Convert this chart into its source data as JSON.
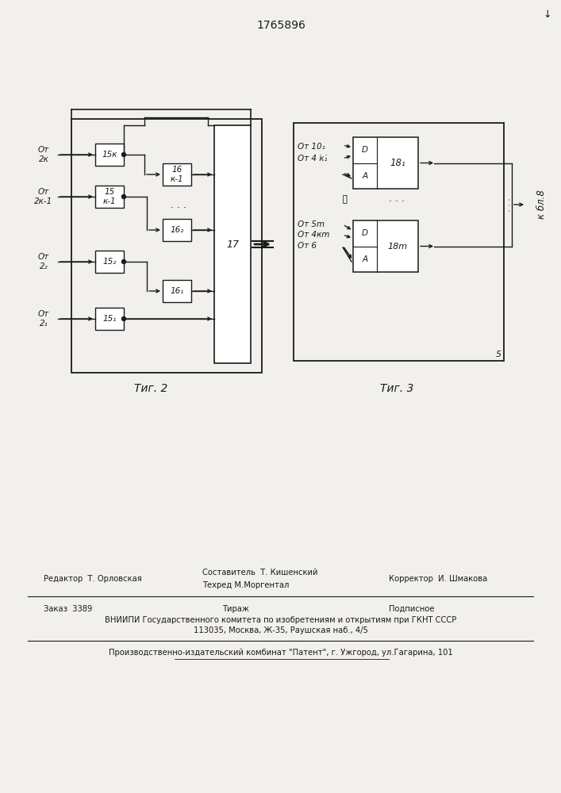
{
  "title": "1765896",
  "fig2_caption": "Τиг. 2",
  "fig3_caption": "Τиг. 3",
  "bg_color": "#f2f0ec",
  "line_color": "#1a1a1a",
  "box_color": "#ffffff",
  "inp2_labels": [
    "От\n2к",
    "От\n2к-1",
    "От\n2₂",
    "От\n2₁"
  ],
  "b15_labels": [
    "15к",
    "15\nк-1",
    "15₂",
    "15₁"
  ],
  "b16_labels": [
    "16\nк-1",
    "16₂",
    "16₁"
  ],
  "label_17": "17",
  "inp3_top": [
    "От 10₁",
    "От 4 к₁"
  ],
  "inp3_bot": [
    "От 5m",
    "От 4кm",
    "От 6"
  ],
  "label_18_1": "18₁",
  "label_18m": "18m",
  "label_D": "D",
  "label_A": "A",
  "label_k_bl8": "к бл.8",
  "label_5": "5",
  "footer_editor": "Редактор  Т. Орловская",
  "footer_sostavitel": "Составитель  Т. Кишенский",
  "footer_tekhred": "Техред М.Моргентал",
  "footer_korrektor": "Корректор  И. Шмакова",
  "footer_zakaz": "Заказ  3389",
  "footer_tirazh": "Тираж",
  "footer_podpisnoe": "Подписное",
  "footer_vniipil1": "ВНИИПИ Государственного комитета по изобретениям и открытиям при ГКНТ СССР",
  "footer_vniipil2": "113035, Москва, Ж-35, Раушская наб., 4/5",
  "footer_patent": "Производственно-издательский комбинат \"Патент\", г. Ужгород, ул.Гагарина, 101"
}
